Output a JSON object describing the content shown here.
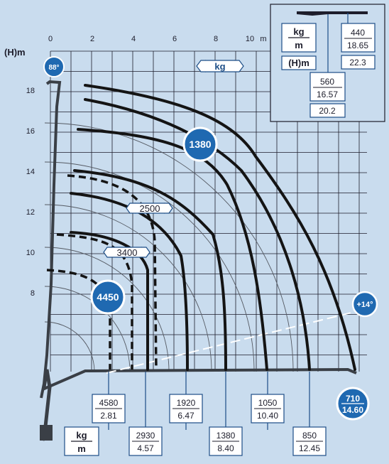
{
  "colors": {
    "background": "#c9dcee",
    "grid": "#1d1d2b",
    "badge": "#1f69b1",
    "badge_ring": "#ffffff",
    "box_text": "#1d4e87",
    "curve": "#141414",
    "crane": "#3a3f46"
  },
  "axes": {
    "x_ticks": [
      "0",
      "2",
      "4",
      "6",
      "8",
      "10"
    ],
    "x_unit": "m",
    "y_title": "(H)m",
    "y_ticks": [
      "18",
      "16",
      "14",
      "12",
      "10",
      "8"
    ]
  },
  "center_label": "kg",
  "badges": {
    "max_angle": "88°",
    "min_angle": "+14°",
    "load_1380": "1380",
    "load_4450": "4450",
    "tip_load": "710",
    "tip_reach": "14.60"
  },
  "bubble_labels": [
    "2500",
    "3400"
  ],
  "legend_box": {
    "kg_label": "kg",
    "m_label": "m",
    "h_label": "(H)m",
    "upper_kg": "440",
    "upper_m": "18.65",
    "upper_h": "22.3",
    "lower_kg": "560",
    "lower_m": "16.57",
    "lower_h": "20.2"
  },
  "bottom_legend": {
    "kg": "kg",
    "m": "m"
  },
  "bottom_boxes": [
    {
      "kg": "4580",
      "m": "2.81"
    },
    {
      "kg": "2930",
      "m": "4.57"
    },
    {
      "kg": "1920",
      "m": "6.47"
    },
    {
      "kg": "1380",
      "m": "8.40"
    },
    {
      "kg": "1050",
      "m": "10.40"
    },
    {
      "kg": "850",
      "m": "12.45"
    }
  ]
}
